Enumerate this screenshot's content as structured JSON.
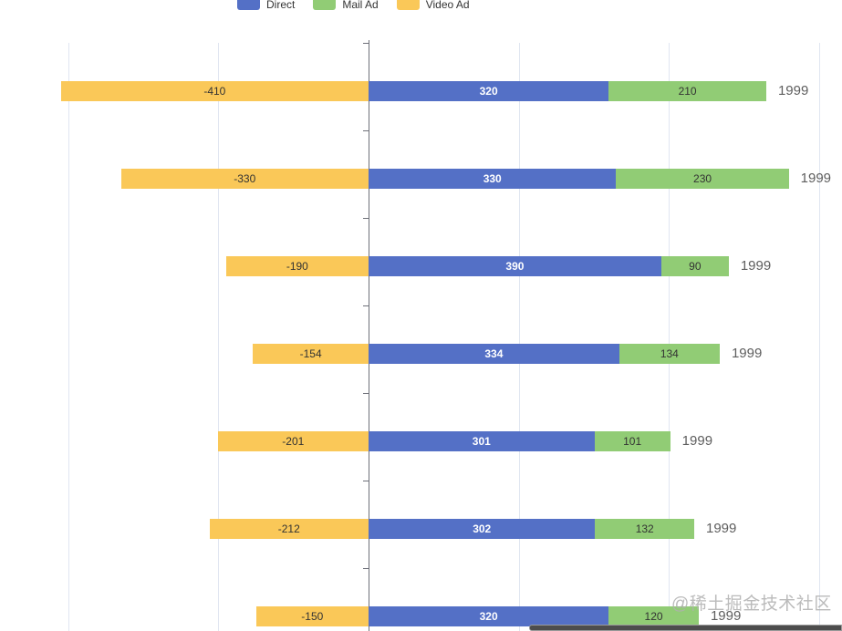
{
  "legend": {
    "items": [
      {
        "label": "Direct",
        "color": "#5470c6"
      },
      {
        "label": "Mail Ad",
        "color": "#91cc75"
      },
      {
        "label": "Video Ad",
        "color": "#fac858"
      }
    ]
  },
  "watermark": "@稀土掘金技术社区",
  "chart_data": {
    "type": "bar",
    "orientation": "horizontal",
    "title": "",
    "xlabel": "",
    "ylabel": "",
    "categories": [
      "1999",
      "1999",
      "1999",
      "1999",
      "1999",
      "1999",
      "1999"
    ],
    "series": [
      {
        "name": "Video Ad",
        "color": "#fac858",
        "label_color": "#333333",
        "values": [
          -410,
          -330,
          -190,
          -154,
          -201,
          -212,
          -150
        ]
      },
      {
        "name": "Direct",
        "color": "#5470c6",
        "label_color": "#ffffff",
        "values": [
          320,
          330,
          390,
          334,
          301,
          302,
          320
        ]
      },
      {
        "name": "Mail Ad",
        "color": "#91cc75",
        "label_color": "#333333",
        "values": [
          210,
          230,
          90,
          134,
          101,
          132,
          120
        ]
      }
    ],
    "x_axis": {
      "gridline_values": [
        -400,
        -200,
        0,
        200,
        400,
        600
      ],
      "zero_line": 0,
      "grid": true
    },
    "legend_position": "top",
    "value_labels": "inside",
    "category_label_position": "right-of-bar"
  }
}
